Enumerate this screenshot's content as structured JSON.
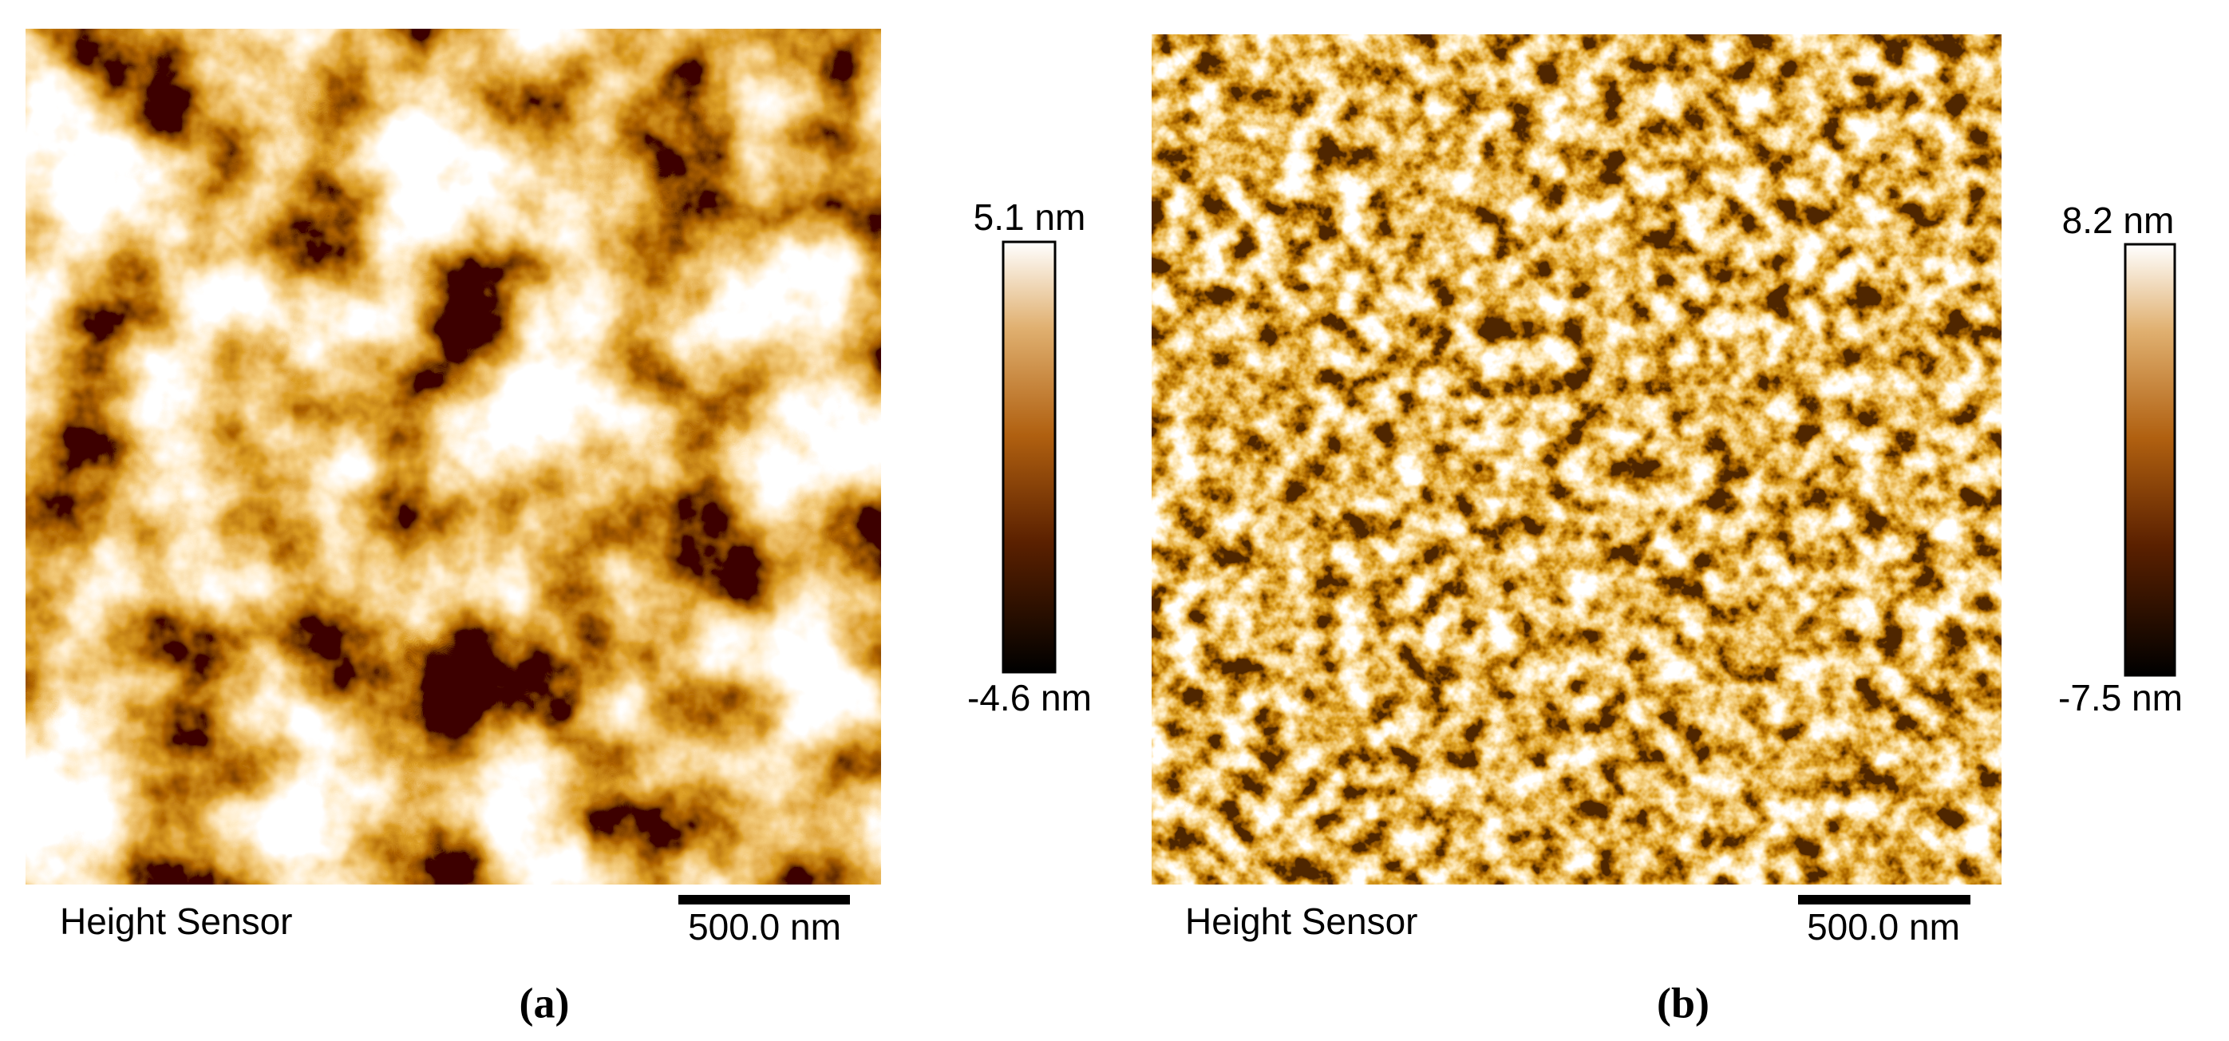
{
  "panels": [
    {
      "colorbar": {
        "max": "5.1 nm",
        "min": "-4.6 nm"
      },
      "label": "Height Sensor",
      "scale_bar": "500.0 nm",
      "caption": "(a)"
    },
    {
      "colorbar": {
        "max": "8.2 nm",
        "min": "-7.5 nm"
      },
      "label": "Height Sensor",
      "scale_bar": "500.0 nm",
      "caption": "(b)"
    }
  ]
}
